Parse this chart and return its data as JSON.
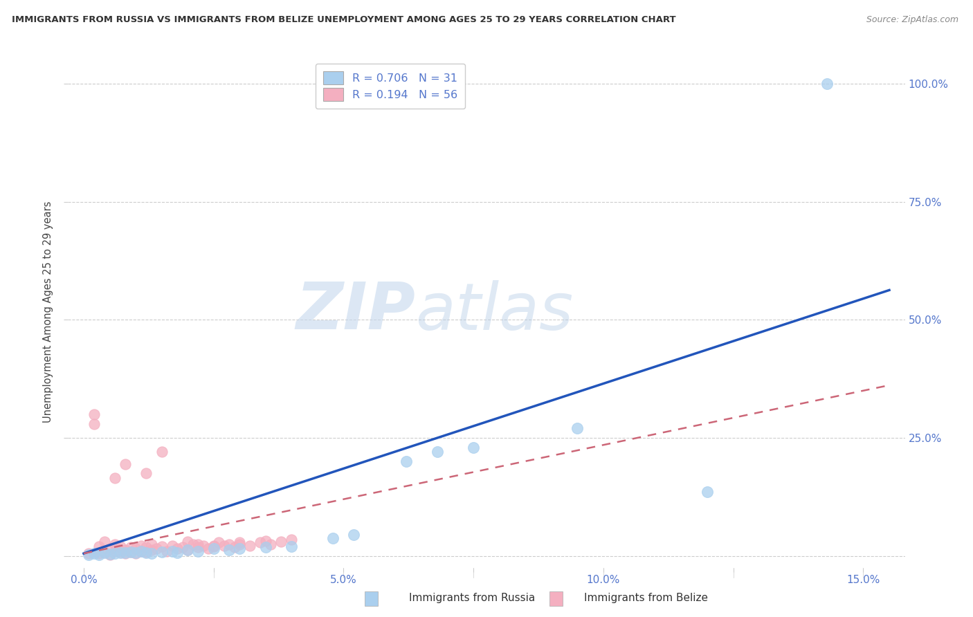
{
  "title": "IMMIGRANTS FROM RUSSIA VS IMMIGRANTS FROM BELIZE UNEMPLOYMENT AMONG AGES 25 TO 29 YEARS CORRELATION CHART",
  "source": "Source: ZipAtlas.com",
  "ylabel": "Unemployment Among Ages 25 to 29 years",
  "legend_russia": "Immigrants from Russia",
  "legend_belize": "Immigrants from Belize",
  "R_russia": 0.706,
  "N_russia": 31,
  "R_belize": 0.194,
  "N_belize": 56,
  "color_russia": "#aacfee",
  "color_belize": "#f4afc0",
  "trendline_russia": "#2255bb",
  "trendline_belize": "#cc6677",
  "background_color": "#ffffff",
  "grid_color": "#cccccc",
  "title_color": "#333333",
  "tick_color": "#5577cc",
  "russia_x": [
    0.001,
    0.002,
    0.003,
    0.004,
    0.005,
    0.006,
    0.007,
    0.008,
    0.009,
    0.01,
    0.011,
    0.012,
    0.013,
    0.015,
    0.017,
    0.018,
    0.02,
    0.022,
    0.025,
    0.028,
    0.03,
    0.035,
    0.04,
    0.048,
    0.052,
    0.062,
    0.068,
    0.075,
    0.095,
    0.12,
    0.143
  ],
  "russia_y": [
    0.002,
    0.005,
    0.003,
    0.006,
    0.004,
    0.005,
    0.007,
    0.006,
    0.008,
    0.007,
    0.009,
    0.006,
    0.005,
    0.008,
    0.01,
    0.007,
    0.012,
    0.01,
    0.015,
    0.012,
    0.015,
    0.018,
    0.02,
    0.038,
    0.045,
    0.2,
    0.22,
    0.23,
    0.27,
    0.135,
    1.0
  ],
  "belize_x": [
    0.001,
    0.002,
    0.002,
    0.003,
    0.003,
    0.004,
    0.004,
    0.005,
    0.005,
    0.006,
    0.006,
    0.007,
    0.007,
    0.008,
    0.008,
    0.009,
    0.009,
    0.01,
    0.01,
    0.011,
    0.011,
    0.012,
    0.012,
    0.013,
    0.013,
    0.014,
    0.015,
    0.016,
    0.017,
    0.018,
    0.019,
    0.02,
    0.021,
    0.022,
    0.023,
    0.024,
    0.025,
    0.026,
    0.027,
    0.028,
    0.029,
    0.03,
    0.032,
    0.034,
    0.036,
    0.038,
    0.02,
    0.022,
    0.025,
    0.03,
    0.035,
    0.04,
    0.012,
    0.015,
    0.008,
    0.006
  ],
  "belize_y": [
    0.005,
    0.3,
    0.28,
    0.005,
    0.02,
    0.008,
    0.03,
    0.003,
    0.015,
    0.01,
    0.025,
    0.008,
    0.02,
    0.012,
    0.005,
    0.018,
    0.008,
    0.005,
    0.015,
    0.022,
    0.01,
    0.008,
    0.018,
    0.012,
    0.025,
    0.015,
    0.02,
    0.01,
    0.022,
    0.015,
    0.018,
    0.012,
    0.025,
    0.018,
    0.022,
    0.015,
    0.02,
    0.028,
    0.022,
    0.025,
    0.018,
    0.025,
    0.022,
    0.028,
    0.025,
    0.03,
    0.03,
    0.025,
    0.022,
    0.028,
    0.032,
    0.035,
    0.175,
    0.22,
    0.195,
    0.165
  ],
  "watermark_zip": "ZIP",
  "watermark_atlas": "atlas",
  "xlim": [
    -0.003,
    0.158
  ],
  "ylim": [
    -0.025,
    1.06
  ]
}
